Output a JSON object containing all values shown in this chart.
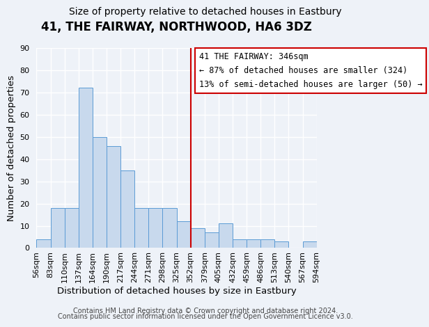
{
  "title": "41, THE FAIRWAY, NORTHWOOD, HA6 3DZ",
  "subtitle": "Size of property relative to detached houses in Eastbury",
  "xlabel": "Distribution of detached houses by size in Eastbury",
  "ylabel": "Number of detached properties",
  "bar_values": [
    4,
    18,
    18,
    72,
    50,
    46,
    35,
    18,
    18,
    18,
    12,
    9,
    7,
    11,
    4,
    4,
    4,
    3,
    0,
    3
  ],
  "x_tick_labels": [
    "56sqm",
    "83sqm",
    "110sqm",
    "137sqm",
    "164sqm",
    "190sqm",
    "217sqm",
    "244sqm",
    "271sqm",
    "298sqm",
    "325sqm",
    "352sqm",
    "379sqm",
    "405sqm",
    "432sqm",
    "459sqm",
    "486sqm",
    "513sqm",
    "540sqm",
    "567sqm",
    "594sqm"
  ],
  "bar_color": "#c8d9ed",
  "bar_edge_color": "#5b9bd5",
  "vline_pos": 11,
  "vline_color": "#cc0000",
  "ylim": [
    0,
    90
  ],
  "yticks": [
    0,
    10,
    20,
    30,
    40,
    50,
    60,
    70,
    80,
    90
  ],
  "legend_title": "41 THE FAIRWAY: 346sqm",
  "legend_line1": "← 87% of detached houses are smaller (324)",
  "legend_line2": "13% of semi-detached houses are larger (50) →",
  "legend_box_color": "#ffffff",
  "legend_box_edge": "#cc0000",
  "footer1": "Contains HM Land Registry data © Crown copyright and database right 2024.",
  "footer2": "Contains public sector information licensed under the Open Government Licence v3.0.",
  "bg_color": "#eef2f8",
  "grid_color": "#ffffff",
  "title_fontsize": 12,
  "subtitle_fontsize": 10,
  "axis_label_fontsize": 9.5,
  "tick_fontsize": 8,
  "footer_fontsize": 7,
  "legend_fontsize": 8.5
}
